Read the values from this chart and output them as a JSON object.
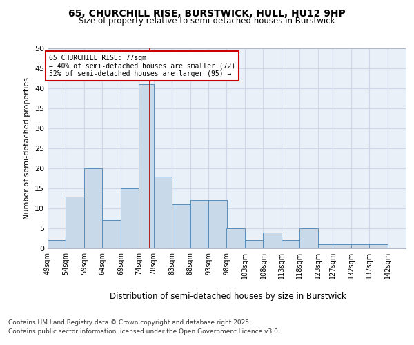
{
  "title1": "65, CHURCHILL RISE, BURSTWICK, HULL, HU12 9HP",
  "title2": "Size of property relative to semi-detached houses in Burstwick",
  "xlabel": "Distribution of semi-detached houses by size in Burstwick",
  "ylabel": "Number of semi-detached properties",
  "footnote1": "Contains HM Land Registry data © Crown copyright and database right 2025.",
  "footnote2": "Contains public sector information licensed under the Open Government Licence v3.0.",
  "bins": [
    49,
    54,
    59,
    64,
    69,
    74,
    78,
    83,
    88,
    93,
    98,
    103,
    108,
    113,
    118,
    123,
    127,
    132,
    137,
    142,
    147
  ],
  "counts": [
    2,
    13,
    20,
    7,
    15,
    41,
    18,
    11,
    12,
    12,
    5,
    2,
    4,
    2,
    5,
    1,
    1,
    1,
    1,
    0
  ],
  "bar_color": "#c8d9ea",
  "bar_edge_color": "#5b8db8",
  "grid_color": "#d0d8e8",
  "bg_color": "#eaf0f8",
  "annotation_text": "65 CHURCHILL RISE: 77sqm\n← 40% of semi-detached houses are smaller (72)\n52% of semi-detached houses are larger (95) →",
  "property_line_x": 77,
  "annotation_box_color": "#ffffff",
  "annotation_box_edge": "#cc0000",
  "property_line_color": "#aa0000",
  "ylim": [
    0,
    50
  ],
  "yticks": [
    0,
    5,
    10,
    15,
    20,
    25,
    30,
    35,
    40,
    45,
    50
  ]
}
